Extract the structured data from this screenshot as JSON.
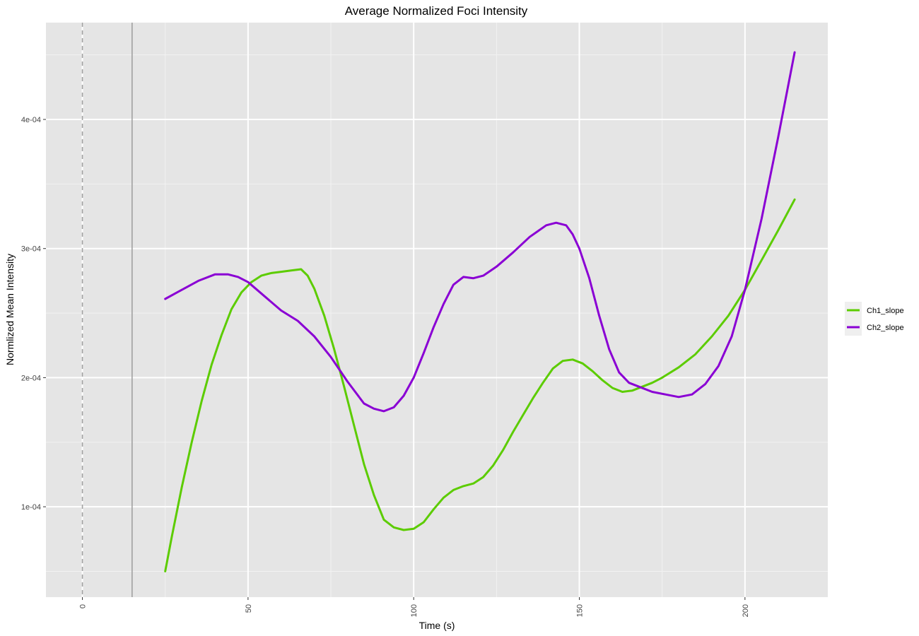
{
  "chart_data": {
    "type": "line",
    "title": "Average Normalized Foci Intensity",
    "xlabel": "Time (s)",
    "ylabel": "Normlized Mean Intensity",
    "xlim": [
      -11,
      225
    ],
    "ylim": [
      3e-05,
      0.000475
    ],
    "x_ticks": [
      0,
      50,
      100,
      150,
      200
    ],
    "x_tick_labels": [
      "0",
      "50",
      "100",
      "150",
      "200"
    ],
    "y_ticks": [
      0.0001,
      0.0002,
      0.0003,
      0.0004
    ],
    "y_tick_labels": [
      "1e-04",
      "2e-04",
      "3e-04",
      "4e-04"
    ],
    "grid": true,
    "legend_position": "right",
    "reference_lines": [
      {
        "x": 0,
        "style": "dashed"
      },
      {
        "x": 15,
        "style": "solid"
      }
    ],
    "series": [
      {
        "name": "Ch1_slope",
        "color": "#5ccc00",
        "x": [
          25,
          27,
          30,
          33,
          36,
          39,
          42,
          45,
          48,
          51,
          54,
          57,
          60,
          63,
          66,
          68,
          70,
          73,
          76,
          79,
          82,
          85,
          88,
          91,
          94,
          97,
          100,
          103,
          106,
          109,
          112,
          115,
          118,
          121,
          124,
          127,
          130,
          133,
          136,
          139,
          142,
          145,
          148,
          151,
          154,
          157,
          160,
          163,
          166,
          169,
          172,
          175,
          180,
          185,
          190,
          195,
          200,
          205,
          210,
          215
        ],
        "y": [
          5e-05,
          7.7e-05,
          0.000115,
          0.00015,
          0.000182,
          0.00021,
          0.000233,
          0.000253,
          0.000266,
          0.000274,
          0.000279,
          0.000281,
          0.000282,
          0.000283,
          0.000284,
          0.000279,
          0.000269,
          0.000248,
          0.000222,
          0.000193,
          0.000163,
          0.000133,
          0.000109,
          9e-05,
          8.4e-05,
          8.2e-05,
          8.3e-05,
          8.8e-05,
          9.8e-05,
          0.000107,
          0.000113,
          0.000116,
          0.000118,
          0.000123,
          0.000132,
          0.000144,
          0.000158,
          0.000171,
          0.000184,
          0.000196,
          0.000207,
          0.000213,
          0.000214,
          0.000211,
          0.000205,
          0.000198,
          0.000192,
          0.000189,
          0.00019,
          0.000193,
          0.000196,
          0.0002,
          0.000208,
          0.000218,
          0.000232,
          0.000248,
          0.000268,
          0.000291,
          0.000314,
          0.000338
        ]
      },
      {
        "name": "Ch2_slope",
        "color": "#8a00d4",
        "x": [
          25,
          30,
          35,
          40,
          44,
          47,
          50,
          55,
          60,
          65,
          70,
          75,
          80,
          85,
          88,
          91,
          94,
          97,
          100,
          103,
          106,
          109,
          112,
          115,
          118,
          121,
          125,
          130,
          135,
          140,
          143,
          146,
          148,
          150,
          153,
          156,
          159,
          162,
          165,
          168,
          172,
          176,
          180,
          184,
          188,
          192,
          196,
          200,
          205,
          210,
          215
        ],
        "y": [
          0.000261,
          0.000268,
          0.000275,
          0.00028,
          0.00028,
          0.000278,
          0.000274,
          0.000263,
          0.000252,
          0.000244,
          0.000232,
          0.000216,
          0.000197,
          0.00018,
          0.000176,
          0.000174,
          0.000177,
          0.000186,
          0.0002,
          0.000219,
          0.000239,
          0.000257,
          0.000272,
          0.000278,
          0.000277,
          0.000279,
          0.000286,
          0.000297,
          0.000309,
          0.000318,
          0.00032,
          0.000318,
          0.000311,
          0.0003,
          0.000277,
          0.000248,
          0.000222,
          0.000204,
          0.000196,
          0.000193,
          0.000189,
          0.000187,
          0.000185,
          0.000187,
          0.000195,
          0.000209,
          0.000232,
          0.000268,
          0.000323,
          0.000386,
          0.000452
        ]
      }
    ]
  }
}
